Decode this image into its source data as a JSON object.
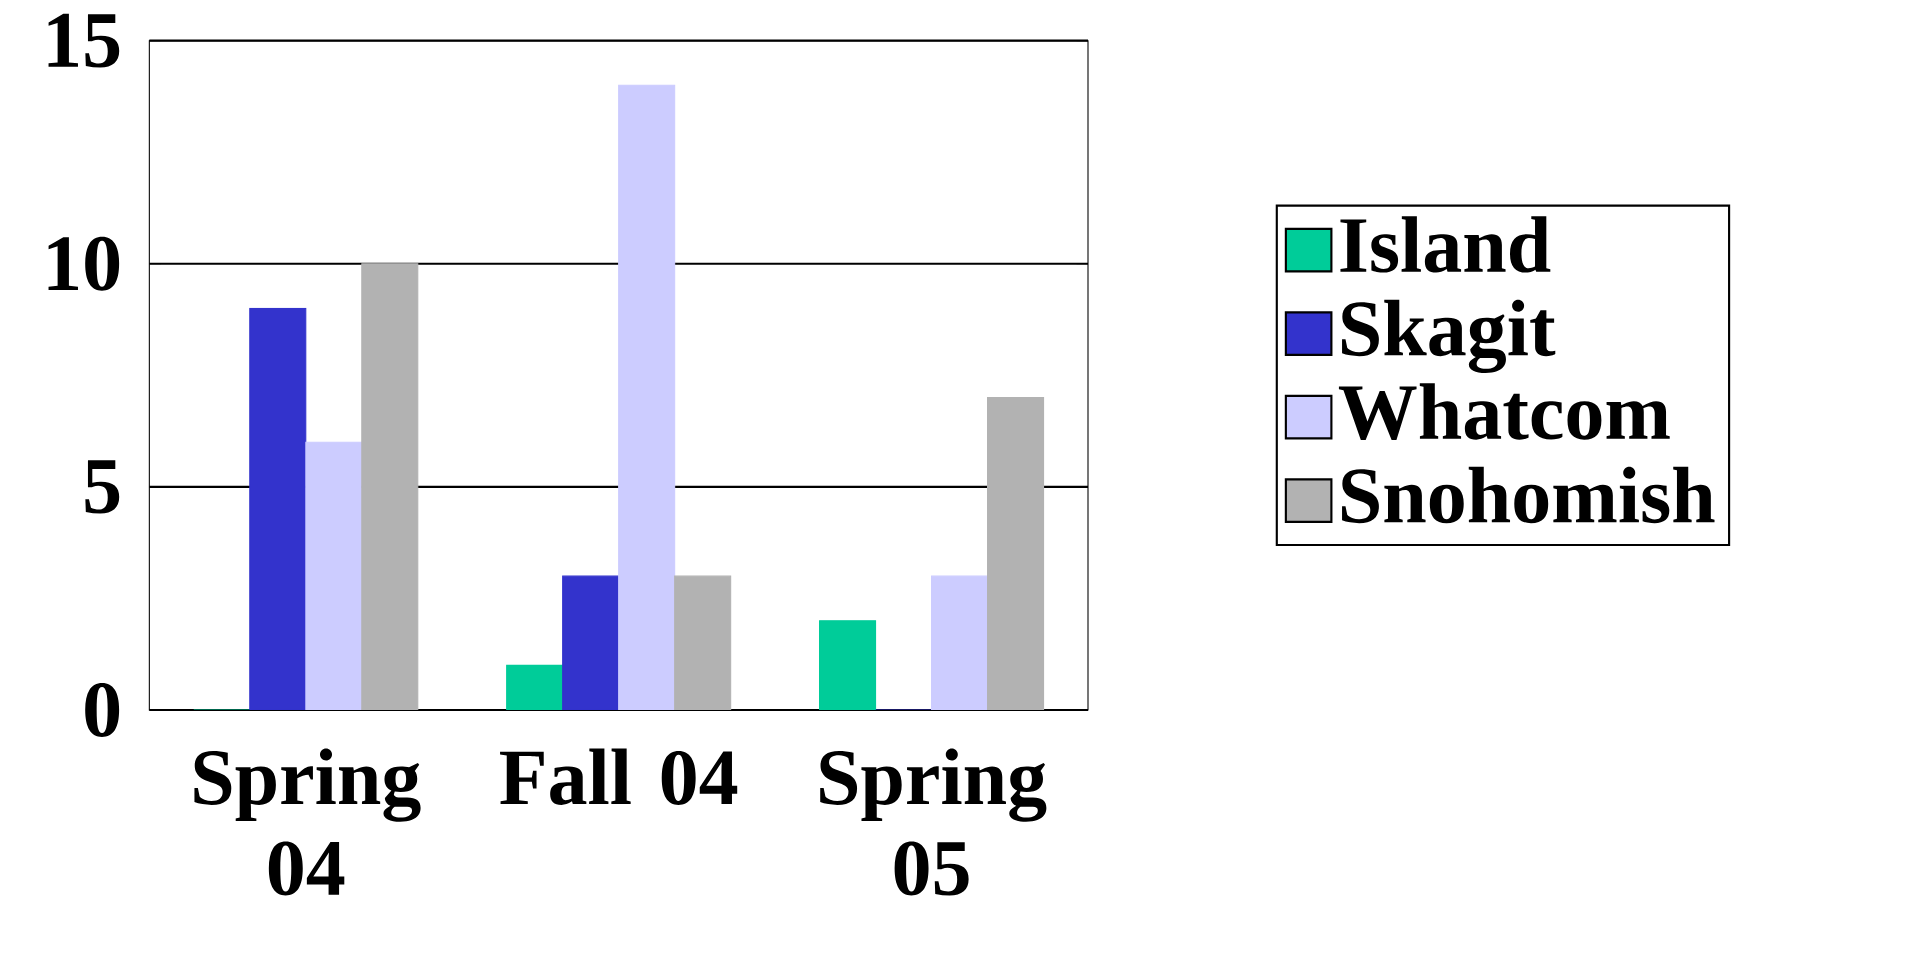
{
  "chart_data": {
    "type": "bar",
    "categories": [
      "Spring 04",
      "Fall 04",
      "Spring 05"
    ],
    "series": [
      {
        "name": "Island",
        "color": "#00cc99",
        "values": [
          0,
          1,
          2
        ]
      },
      {
        "name": "Skagit",
        "color": "#3333cc",
        "values": [
          9,
          3,
          0
        ]
      },
      {
        "name": "Whatcom",
        "color": "#ccccff",
        "values": [
          6,
          14,
          3
        ]
      },
      {
        "name": "Snohomish",
        "color": "#b2b2b2",
        "values": [
          10,
          3,
          7
        ]
      }
    ],
    "ylim": [
      0,
      15
    ],
    "yticks": [
      0,
      5,
      10,
      15
    ],
    "grid": "y",
    "legend": "right"
  }
}
